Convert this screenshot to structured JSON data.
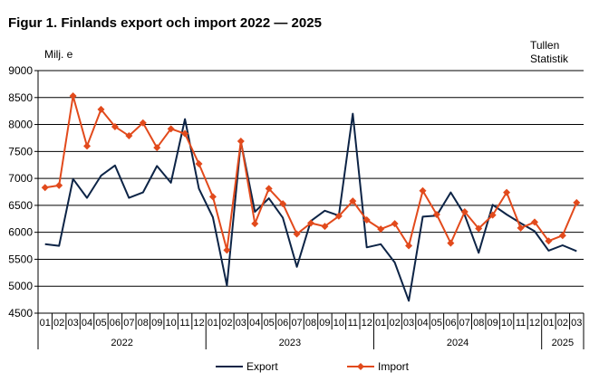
{
  "title": "Figur 1. Finlands export och import 2022 — 2025",
  "unit_label": "Milj. e",
  "source": [
    "Tullen",
    "Statistik"
  ],
  "chart_data": {
    "type": "line",
    "title": "Figur 1. Finlands export och import 2022 — 2025",
    "ylabel": "Milj. e",
    "xlabel": "",
    "ylim": [
      4500,
      9000
    ],
    "yticks": [
      4500,
      5000,
      5500,
      6000,
      6500,
      7000,
      7500,
      8000,
      8500,
      9000
    ],
    "grid": true,
    "legend_position": "bottom",
    "categories": [
      "01",
      "02",
      "03",
      "04",
      "05",
      "06",
      "07",
      "08",
      "09",
      "10",
      "11",
      "12",
      "01",
      "02",
      "03",
      "04",
      "05",
      "06",
      "07",
      "08",
      "09",
      "10",
      "11",
      "12",
      "01",
      "02",
      "03",
      "04",
      "05",
      "06",
      "07",
      "08",
      "09",
      "10",
      "11",
      "12",
      "01",
      "02",
      "03"
    ],
    "year_groups": [
      {
        "label": "2022",
        "count": 12
      },
      {
        "label": "2023",
        "count": 12
      },
      {
        "label": "2024",
        "count": 12
      },
      {
        "label": "2025",
        "count": 3
      }
    ],
    "series": [
      {
        "name": "Export",
        "color": "#0d2446",
        "marker": "none",
        "values": [
          5780,
          5750,
          6990,
          6640,
          7050,
          7240,
          6640,
          6740,
          7230,
          6920,
          8100,
          6810,
          6280,
          5010,
          7680,
          6380,
          6630,
          6270,
          5360,
          6210,
          6400,
          6310,
          8200,
          5720,
          5780,
          5440,
          4730,
          6290,
          6310,
          6740,
          6320,
          5620,
          6510,
          6330,
          6170,
          6020,
          5660,
          5760,
          5650
        ]
      },
      {
        "name": "Import",
        "color": "#e24a1c",
        "marker": "diamond",
        "values": [
          6830,
          6870,
          8530,
          7600,
          8280,
          7960,
          7790,
          8030,
          7570,
          7920,
          7830,
          7270,
          6660,
          5670,
          7690,
          6160,
          6810,
          6530,
          5970,
          6170,
          6110,
          6300,
          6580,
          6230,
          6060,
          6160,
          5750,
          6770,
          6330,
          5800,
          6380,
          6070,
          6320,
          6740,
          6080,
          6190,
          5840,
          5940,
          6550
        ]
      }
    ]
  }
}
